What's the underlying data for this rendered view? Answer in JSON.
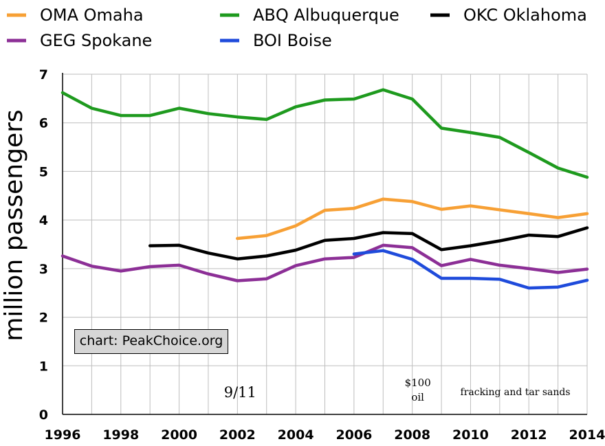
{
  "chart_data": {
    "type": "line",
    "title": "",
    "xlabel": "",
    "ylabel": "million passengers",
    "xlim": [
      1996,
      2014
    ],
    "ylim": [
      0,
      7
    ],
    "x_ticks": [
      1996,
      1998,
      2000,
      2002,
      2004,
      2006,
      2008,
      2010,
      2012,
      2014
    ],
    "y_ticks": [
      0,
      1,
      2,
      3,
      4,
      5,
      6,
      7
    ],
    "grid": true,
    "legend_position": "top",
    "series": [
      {
        "name": "OMA Omaha",
        "color": "#f7a035",
        "x": [
          2002,
          2003,
          2004,
          2005,
          2006,
          2007,
          2008,
          2009,
          2010,
          2011,
          2012,
          2013,
          2014
        ],
        "y": [
          3.62,
          3.68,
          3.88,
          4.2,
          4.24,
          4.43,
          4.38,
          4.22,
          4.29,
          4.21,
          4.13,
          4.05,
          4.13
        ]
      },
      {
        "name": "ABQ Albuquerque",
        "color": "#1e9a1e",
        "x": [
          1996,
          1997,
          1998,
          1999,
          2000,
          2001,
          2002,
          2003,
          2004,
          2005,
          2006,
          2007,
          2008,
          2009,
          2010,
          2011,
          2012,
          2013,
          2014
        ],
        "y": [
          6.62,
          6.3,
          6.15,
          6.15,
          6.3,
          6.19,
          6.12,
          6.07,
          6.33,
          6.47,
          6.49,
          6.68,
          6.49,
          5.89,
          5.8,
          5.7,
          5.39,
          5.07,
          4.88
        ]
      },
      {
        "name": "OKC Oklahoma",
        "color": "#000000",
        "x": [
          1999,
          2000,
          2001,
          2002,
          2003,
          2004,
          2005,
          2006,
          2007,
          2008,
          2009,
          2010,
          2011,
          2012,
          2013,
          2014
        ],
        "y": [
          3.47,
          3.48,
          3.32,
          3.2,
          3.26,
          3.38,
          3.58,
          3.62,
          3.74,
          3.72,
          3.39,
          3.47,
          3.57,
          3.69,
          3.66,
          3.84
        ]
      },
      {
        "name": "GEG Spokane",
        "color": "#8c2f96",
        "x": [
          1996,
          1997,
          1998,
          1999,
          2000,
          2001,
          2002,
          2003,
          2004,
          2005,
          2006,
          2007,
          2008,
          2009,
          2010,
          2011,
          2012,
          2013,
          2014
        ],
        "y": [
          3.26,
          3.05,
          2.95,
          3.04,
          3.07,
          2.89,
          2.75,
          2.79,
          3.06,
          3.2,
          3.23,
          3.48,
          3.43,
          3.06,
          3.19,
          3.07,
          3.0,
          2.92,
          2.99
        ]
      },
      {
        "name": "BOI Boise",
        "color": "#1f4bdb",
        "x": [
          2006,
          2007,
          2008,
          2009,
          2010,
          2011,
          2012,
          2013,
          2014
        ],
        "y": [
          3.3,
          3.37,
          3.19,
          2.8,
          2.8,
          2.78,
          2.6,
          2.62,
          2.76
        ]
      }
    ],
    "annotations": [
      {
        "text": "9/11",
        "x": 2002
      },
      {
        "text": "$100",
        "x": 2008
      },
      {
        "text": "oil",
        "x": 2008
      },
      {
        "text": "fracking and tar sands",
        "x": 2011.3
      }
    ],
    "credit": "chart: PeakChoice.org"
  }
}
